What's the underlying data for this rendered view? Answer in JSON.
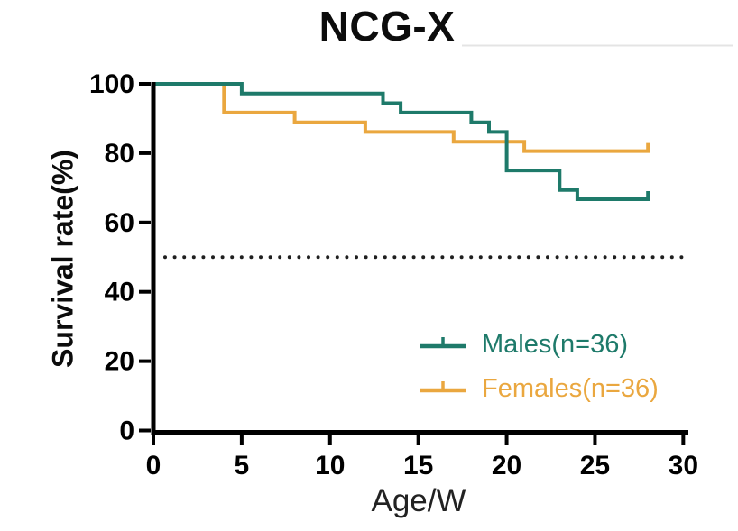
{
  "title": "NCG-X",
  "colors": {
    "males": "#1E7A6A",
    "females": "#EAA73F",
    "axis": "#000000",
    "dotted": "#1f1f1f",
    "background": "#ffffff"
  },
  "chart_data": {
    "type": "line",
    "subtype": "kaplan-meier-step-survival",
    "title": "NCG-X",
    "xlabel": "Age/W",
    "ylabel": "Survival rate(%)",
    "xlim": [
      0,
      30
    ],
    "ylim": [
      0,
      100
    ],
    "xticks": [
      0,
      5,
      10,
      15,
      20,
      25,
      30
    ],
    "yticks": [
      0,
      20,
      40,
      60,
      80,
      100
    ],
    "grid": false,
    "legend_position": "lower right",
    "reference_line": {
      "y": 50,
      "style": "dotted",
      "color": "#1f1f1f"
    },
    "series": [
      {
        "name": "Males(n=36)",
        "color": "#1E7A6A",
        "end_censor_tick": true,
        "steps": [
          [
            0,
            100
          ],
          [
            5,
            97.2
          ],
          [
            13,
            94.4
          ],
          [
            14,
            91.7
          ],
          [
            18,
            88.9
          ],
          [
            19,
            86.1
          ],
          [
            20,
            75
          ],
          [
            23,
            69.4
          ],
          [
            24,
            66.7
          ],
          [
            28,
            66.7
          ]
        ]
      },
      {
        "name": "Females(n=36)",
        "color": "#EAA73F",
        "end_censor_tick": true,
        "steps": [
          [
            0,
            100
          ],
          [
            4,
            91.7
          ],
          [
            8,
            88.9
          ],
          [
            12,
            86.1
          ],
          [
            17,
            83.3
          ],
          [
            21,
            80.6
          ],
          [
            28,
            80.6
          ]
        ]
      }
    ]
  },
  "legend": {
    "items": [
      {
        "label": "Males(n=36)"
      },
      {
        "label": "Females(n=36)"
      }
    ]
  }
}
